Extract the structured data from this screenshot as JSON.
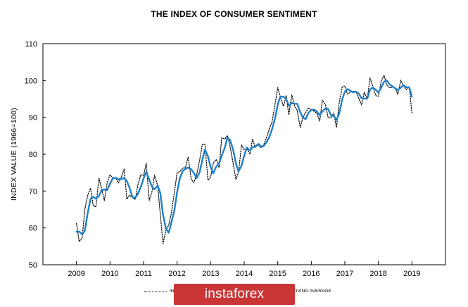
{
  "chart_data": {
    "type": "line",
    "title": "THE INDEX OF CONSUMER SENTIMENT",
    "ylabel": "INDEX VALUE (1966=100)",
    "xlabel": "",
    "ylim": [
      50,
      110
    ],
    "xlim": [
      2008,
      2020
    ],
    "y_ticks": [
      50,
      60,
      70,
      80,
      90,
      100,
      110
    ],
    "x_ticks": [
      "2009",
      "2010",
      "2011",
      "2012",
      "2013",
      "2014",
      "2015",
      "2016",
      "2017",
      "2018",
      "2019"
    ],
    "grid": false,
    "legend_position": "bottom",
    "series": [
      {
        "name": "INDEX",
        "style": "dotted",
        "color": "#000000",
        "x": [
          2009.0,
          2009.08,
          2009.17,
          2009.25,
          2009.33,
          2009.42,
          2009.5,
          2009.58,
          2009.67,
          2009.75,
          2009.83,
          2009.92,
          2010.0,
          2010.08,
          2010.17,
          2010.25,
          2010.33,
          2010.42,
          2010.5,
          2010.58,
          2010.67,
          2010.75,
          2010.83,
          2010.92,
          2011.0,
          2011.08,
          2011.17,
          2011.25,
          2011.33,
          2011.42,
          2011.5,
          2011.58,
          2011.67,
          2011.75,
          2011.83,
          2011.92,
          2012.0,
          2012.08,
          2012.17,
          2012.25,
          2012.33,
          2012.42,
          2012.5,
          2012.58,
          2012.67,
          2012.75,
          2012.83,
          2012.92,
          2013.0,
          2013.08,
          2013.17,
          2013.25,
          2013.33,
          2013.42,
          2013.5,
          2013.58,
          2013.67,
          2013.75,
          2013.83,
          2013.92,
          2014.0,
          2014.08,
          2014.17,
          2014.25,
          2014.33,
          2014.42,
          2014.5,
          2014.58,
          2014.67,
          2014.75,
          2014.83,
          2014.92,
          2015.0,
          2015.08,
          2015.17,
          2015.25,
          2015.33,
          2015.42,
          2015.5,
          2015.58,
          2015.67,
          2015.75,
          2015.83,
          2015.92,
          2016.0,
          2016.08,
          2016.17,
          2016.25,
          2016.33,
          2016.42,
          2016.5,
          2016.58,
          2016.67,
          2016.75,
          2016.83,
          2016.92,
          2017.0,
          2017.08,
          2017.17,
          2017.25,
          2017.33,
          2017.42,
          2017.5,
          2017.58,
          2017.67,
          2017.75,
          2017.83,
          2017.92,
          2018.0,
          2018.08,
          2018.17,
          2018.25,
          2018.33,
          2018.42,
          2018.5,
          2018.58,
          2018.67,
          2018.75,
          2018.83,
          2018.92,
          2019.0
        ],
        "values": [
          61.2,
          56.3,
          57.3,
          65.1,
          68.7,
          70.8,
          66.0,
          65.7,
          73.5,
          70.6,
          67.4,
          72.5,
          74.4,
          73.6,
          73.6,
          72.2,
          73.6,
          76.0,
          67.8,
          68.9,
          68.2,
          67.7,
          71.6,
          74.5,
          74.2,
          77.5,
          67.5,
          69.8,
          74.3,
          71.5,
          63.7,
          55.7,
          59.5,
          60.8,
          64.1,
          69.9,
          75.0,
          75.3,
          76.2,
          76.4,
          79.3,
          73.2,
          72.3,
          74.3,
          78.3,
          82.6,
          82.7,
          72.9,
          73.8,
          77.6,
          78.6,
          76.4,
          84.5,
          84.1,
          85.1,
          82.1,
          77.5,
          73.2,
          75.1,
          82.5,
          81.2,
          81.6,
          80.0,
          84.1,
          81.9,
          82.5,
          81.8,
          82.5,
          84.6,
          86.9,
          88.8,
          93.6,
          98.1,
          95.4,
          93.0,
          95.9,
          90.7,
          96.1,
          93.1,
          91.9,
          87.2,
          90.0,
          91.3,
          92.6,
          92.0,
          91.7,
          91.0,
          89.0,
          94.7,
          93.5,
          90.0,
          89.8,
          91.2,
          87.2,
          93.8,
          98.2,
          98.5,
          96.3,
          96.9,
          97.0,
          97.1,
          95.1,
          93.4,
          96.8,
          95.1,
          100.7,
          98.5,
          95.9,
          95.7,
          99.7,
          101.4,
          98.8,
          98.0,
          98.2,
          97.9,
          96.2,
          100.1,
          98.6,
          97.5,
          98.3,
          91.2
        ]
      },
      {
        "name": "MOVING AVERAGE",
        "style": "solid",
        "color": "#1f7fc8",
        "x": [
          2009.0,
          2009.08,
          2009.17,
          2009.25,
          2009.33,
          2009.42,
          2009.5,
          2009.58,
          2009.67,
          2009.75,
          2009.83,
          2009.92,
          2010.0,
          2010.08,
          2010.17,
          2010.25,
          2010.33,
          2010.42,
          2010.5,
          2010.58,
          2010.67,
          2010.75,
          2010.83,
          2010.92,
          2011.0,
          2011.08,
          2011.17,
          2011.25,
          2011.33,
          2011.42,
          2011.5,
          2011.58,
          2011.67,
          2011.75,
          2011.83,
          2011.92,
          2012.0,
          2012.08,
          2012.17,
          2012.25,
          2012.33,
          2012.42,
          2012.5,
          2012.58,
          2012.67,
          2012.75,
          2012.83,
          2012.92,
          2013.0,
          2013.08,
          2013.17,
          2013.25,
          2013.33,
          2013.42,
          2013.5,
          2013.58,
          2013.67,
          2013.75,
          2013.83,
          2013.92,
          2014.0,
          2014.08,
          2014.17,
          2014.25,
          2014.33,
          2014.42,
          2014.5,
          2014.58,
          2014.67,
          2014.75,
          2014.83,
          2014.92,
          2015.0,
          2015.08,
          2015.17,
          2015.25,
          2015.33,
          2015.42,
          2015.5,
          2015.58,
          2015.67,
          2015.75,
          2015.83,
          2015.92,
          2016.0,
          2016.08,
          2016.17,
          2016.25,
          2016.33,
          2016.42,
          2016.5,
          2016.58,
          2016.67,
          2016.75,
          2016.83,
          2016.92,
          2017.0,
          2017.08,
          2017.17,
          2017.25,
          2017.33,
          2017.42,
          2017.5,
          2017.58,
          2017.67,
          2017.75,
          2017.83,
          2017.92,
          2018.0,
          2018.08,
          2018.17,
          2018.25,
          2018.33,
          2018.42,
          2018.5,
          2018.58,
          2018.67,
          2018.75,
          2018.83,
          2018.92,
          2019.0
        ],
        "values": [
          59.0,
          59.0,
          58.2,
          59.3,
          63.8,
          67.9,
          68.4,
          67.9,
          68.7,
          70.2,
          70.4,
          70.3,
          72.0,
          73.4,
          73.6,
          73.2,
          73.3,
          73.5,
          72.7,
          70.9,
          68.3,
          68.2,
          69.2,
          71.2,
          73.4,
          75.2,
          73.1,
          71.2,
          70.5,
          71.5,
          69.4,
          63.6,
          59.7,
          58.7,
          61.5,
          64.9,
          69.7,
          73.4,
          75.5,
          76.0,
          76.4,
          75.9,
          74.9,
          73.5,
          75.0,
          78.4,
          81.3,
          79.4,
          76.5,
          74.8,
          76.7,
          77.5,
          79.7,
          81.7,
          84.6,
          83.8,
          81.2,
          77.6,
          75.3,
          76.9,
          79.6,
          81.8,
          81.0,
          81.9,
          82.0,
          82.8,
          82.1,
          82.2,
          83.3,
          84.7,
          86.8,
          89.8,
          93.5,
          95.7,
          95.6,
          95.0,
          93.2,
          93.9,
          93.7,
          93.7,
          91.4,
          90.0,
          89.5,
          91.3,
          92.0,
          92.1,
          91.6,
          90.6,
          91.6,
          92.4,
          92.3,
          90.7,
          90.3,
          89.3,
          91.0,
          94.8,
          97.0,
          97.7,
          97.2,
          96.8,
          97.0,
          96.4,
          95.2,
          95.1,
          95.1,
          97.5,
          98.1,
          97.5,
          96.7,
          98.0,
          99.7,
          100.0,
          99.0,
          98.4,
          97.9,
          97.4,
          98.1,
          98.7,
          98.2,
          98.2,
          95.6
        ]
      }
    ]
  },
  "legend": {
    "index_label": "INDEX",
    "moving_average_label": "MOVING AVERAGE"
  },
  "watermark": {
    "text": "instaforex",
    "color": "#ca3536"
  }
}
